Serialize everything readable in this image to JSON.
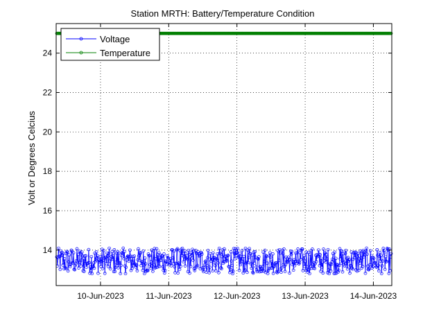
{
  "chart_data": {
    "type": "line",
    "title": "Station MRTH: Battery/Temperature Condition",
    "xlabel": "",
    "ylabel": "Volt or Degrees Celcius",
    "x_tick_labels": [
      "10-Jun-2023",
      "11-Jun-2023",
      "12-Jun-2023",
      "13-Jun-2023",
      "14-Jun-2023"
    ],
    "x_tick_values": [
      1,
      2,
      3,
      4,
      5
    ],
    "xlim": [
      0.35,
      5.27
    ],
    "y_ticks": [
      14,
      16,
      18,
      20,
      22,
      24
    ],
    "ylim": [
      12.2,
      25.5
    ],
    "grid": true,
    "legend_position": "top-left",
    "series": [
      {
        "name": "Voltage",
        "color": "#0000ff",
        "marker": "circle",
        "x_start": 0.36,
        "x_end": 5.26,
        "count": 600,
        "low": 12.8,
        "high": 14.1
      },
      {
        "name": "Temperature",
        "color": "#007f00",
        "marker": "circle",
        "x_start": 0.36,
        "x_end": 5.26,
        "count": 700,
        "constant": 25.0
      }
    ]
  }
}
